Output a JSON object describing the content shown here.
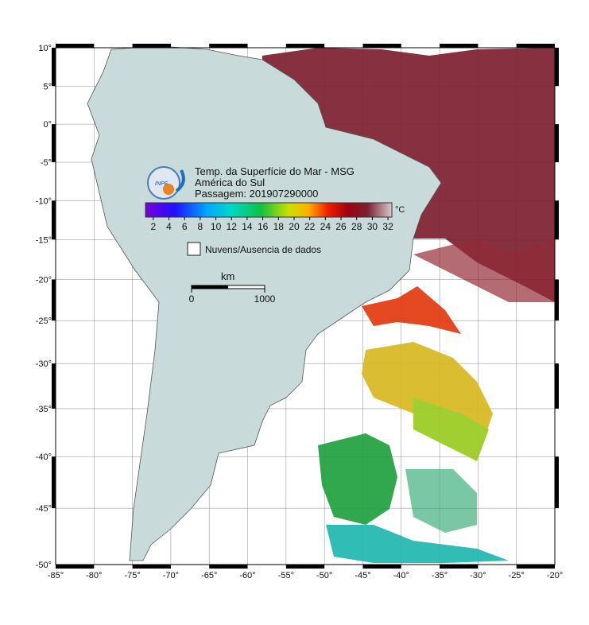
{
  "map": {
    "title_lines": [
      "Temp. da Superfície do Mar - MSG",
      "América do Sul",
      "Passagem: 201907290000"
    ],
    "logo_text": "INPE",
    "lonlim": [
      -85,
      -20
    ],
    "latlim": [
      -50,
      10
    ],
    "lon_ticks": [
      {
        "value": -85,
        "label": "-85°"
      },
      {
        "value": -80,
        "label": "-80°"
      },
      {
        "value": -75,
        "label": "-75°"
      },
      {
        "value": -70,
        "label": "-70°"
      },
      {
        "value": -65,
        "label": "-65°"
      },
      {
        "value": -60,
        "label": "-60°"
      },
      {
        "value": -55,
        "label": "-55°"
      },
      {
        "value": -50,
        "label": "-50°"
      },
      {
        "value": -45,
        "label": "-45°"
      },
      {
        "value": -40,
        "label": "-40°"
      },
      {
        "value": -35,
        "label": "-35°"
      },
      {
        "value": -30,
        "label": "-30°"
      },
      {
        "value": -25,
        "label": "-25°"
      },
      {
        "value": -20,
        "label": "-20°"
      }
    ],
    "lat_ticks": [
      {
        "value": 10,
        "label": "10°"
      },
      {
        "value": 5,
        "label": "5°"
      },
      {
        "value": 0,
        "label": "0°"
      },
      {
        "value": -5,
        "label": "-5°"
      },
      {
        "value": -10,
        "label": "-10°"
      },
      {
        "value": -15,
        "label": "-15°"
      },
      {
        "value": -20,
        "label": "-20°"
      },
      {
        "value": -25,
        "label": "-25°"
      },
      {
        "value": -30,
        "label": "-30°"
      },
      {
        "value": -35,
        "label": "-35°"
      },
      {
        "value": -40,
        "label": "-40°"
      },
      {
        "value": -45,
        "label": "-45°"
      },
      {
        "value": -50,
        "label": "-50°"
      }
    ],
    "colorbar": {
      "range": [
        1,
        32.5
      ],
      "ticks": [
        2,
        4,
        6,
        8,
        10,
        12,
        14,
        16,
        18,
        20,
        22,
        24,
        26,
        28,
        30,
        32
      ],
      "unit": "°C"
    },
    "legend": "Nuvens/Ausencia de dados",
    "scale": {
      "unit": "km",
      "ticks": [
        0,
        1000
      ]
    }
  }
}
